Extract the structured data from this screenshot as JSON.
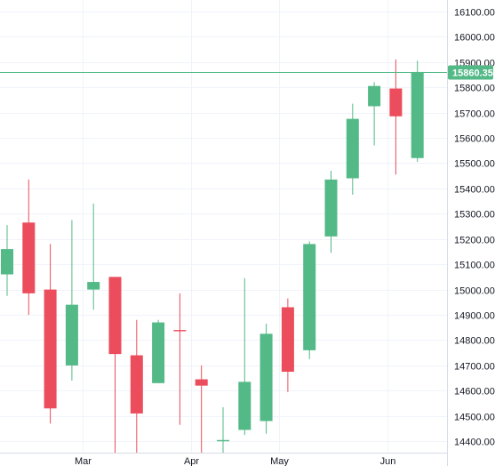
{
  "chart_data": {
    "type": "candlestick",
    "ylim": [
      14355,
      16145
    ],
    "y_ticks": [
      14400,
      14500,
      14600,
      14700,
      14800,
      14900,
      15000,
      15100,
      15200,
      15300,
      15400,
      15500,
      15600,
      15700,
      15800,
      15900,
      16000,
      16100
    ],
    "y_tick_labels": [
      "14400.00",
      "14500.00",
      "14600.00",
      "14700.00",
      "14800.00",
      "14900.00",
      "15000.00",
      "15100.00",
      "15200.00",
      "15300.00",
      "15400.00",
      "15500.00",
      "15600.00",
      "15700.00",
      "15800.00",
      "15900.00",
      "16000.00",
      "16100.00"
    ],
    "x_labels": [
      {
        "label": "Mar",
        "index": 3.5
      },
      {
        "label": "Apr",
        "index": 8.5
      },
      {
        "label": "May",
        "index": 12.6
      },
      {
        "label": "Jun",
        "index": 17.6
      }
    ],
    "grid": true,
    "up_color": "#53b987",
    "down_color": "#eb4d5c",
    "last_price": 15860.35,
    "last_price_label": "15860.35",
    "candles": [
      {
        "open": 15060,
        "high": 15255,
        "low": 14975,
        "close": 15160
      },
      {
        "open": 15265,
        "high": 15435,
        "low": 14900,
        "close": 14985
      },
      {
        "open": 15000,
        "high": 15180,
        "low": 14470,
        "close": 14530
      },
      {
        "open": 14700,
        "high": 15275,
        "low": 14640,
        "close": 14940
      },
      {
        "open": 15000,
        "high": 15340,
        "low": 14920,
        "close": 15030
      },
      {
        "open": 15050,
        "high": 15050,
        "low": 14355,
        "close": 14745
      },
      {
        "open": 14740,
        "high": 14880,
        "low": 14355,
        "close": 14510
      },
      {
        "open": 14630,
        "high": 14880,
        "low": 14630,
        "close": 14870
      },
      {
        "open": 14840,
        "high": 14985,
        "low": 14465,
        "close": 14835
      },
      {
        "open": 14645,
        "high": 14700,
        "low": 14355,
        "close": 14620
      },
      {
        "open": 14400,
        "high": 14535,
        "low": 14355,
        "close": 14405
      },
      {
        "open": 14445,
        "high": 15045,
        "low": 14425,
        "close": 14635
      },
      {
        "open": 14480,
        "high": 14865,
        "low": 14430,
        "close": 14825
      },
      {
        "open": 14930,
        "high": 14965,
        "low": 14595,
        "close": 14675
      },
      {
        "open": 14760,
        "high": 15190,
        "low": 14725,
        "close": 15180
      },
      {
        "open": 15210,
        "high": 15470,
        "low": 15145,
        "close": 15435
      },
      {
        "open": 15440,
        "high": 15735,
        "low": 15375,
        "close": 15675
      },
      {
        "open": 15725,
        "high": 15820,
        "low": 15570,
        "close": 15805
      },
      {
        "open": 15795,
        "high": 15910,
        "low": 15455,
        "close": 15685
      },
      {
        "open": 15520,
        "high": 15905,
        "low": 15505,
        "close": 15860.35
      }
    ]
  }
}
